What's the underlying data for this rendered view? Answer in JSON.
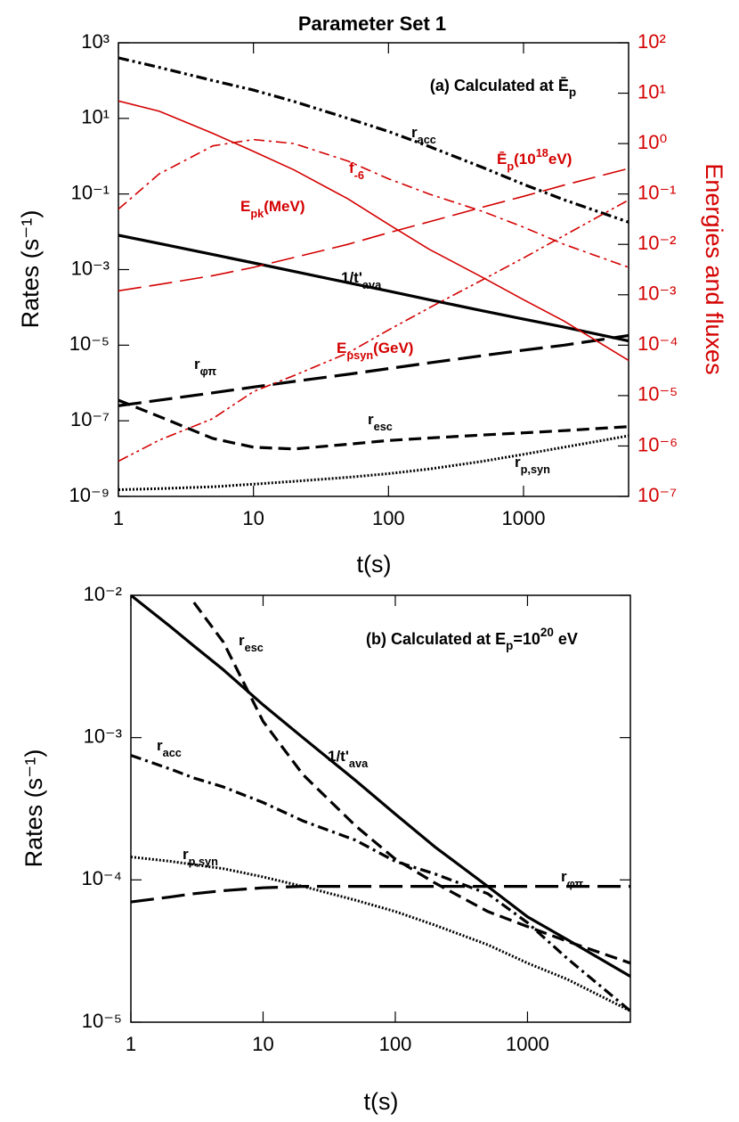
{
  "title": "Parameter Set 1",
  "chart_data": [
    {
      "type": "line",
      "title": [
        {
          "text": "(a) Calculated at "
        },
        {
          "text": "Ē"
        },
        {
          "text": "p",
          "shift": "sub"
        }
      ],
      "xlabel": "t(s)",
      "ylabel": "Rates (s⁻¹)",
      "y2label": "Energies and fluxes",
      "y2color": "#d40000",
      "xscale": "log",
      "yscale": "log",
      "y2scale": "log",
      "xlim": [
        1,
        6000
      ],
      "xticks": [
        1,
        10,
        100,
        1000
      ],
      "ylim": [
        1e-09,
        1000
      ],
      "yticks": [
        {
          "value": 1000,
          "label": "10³"
        },
        {
          "value": 10,
          "label": "10¹"
        },
        {
          "value": 0.1,
          "label": "10⁻¹"
        },
        {
          "value": 0.001,
          "label": "10⁻³"
        },
        {
          "value": 1e-05,
          "label": "10⁻⁵"
        },
        {
          "value": 1e-07,
          "label": "10⁻⁷"
        },
        {
          "value": 1e-09,
          "label": "10⁻⁹"
        }
      ],
      "y2lim": [
        1e-07,
        100
      ],
      "y2ticks": [
        {
          "value": 100,
          "label": "10²"
        },
        {
          "value": 10,
          "label": "10¹"
        },
        {
          "value": 1,
          "label": "10⁰"
        },
        {
          "value": 0.1,
          "label": "10⁻¹"
        },
        {
          "value": 0.01,
          "label": "10⁻²"
        },
        {
          "value": 0.001,
          "label": "10⁻³"
        },
        {
          "value": 0.0001,
          "label": "10⁻⁴"
        },
        {
          "value": 1e-05,
          "label": "10⁻⁵"
        },
        {
          "value": 1e-06,
          "label": "10⁻⁶"
        },
        {
          "value": 1e-07,
          "label": "10⁻⁷"
        }
      ],
      "x": [
        1,
        2,
        5,
        10,
        20,
        50,
        100,
        200,
        500,
        1000,
        2000,
        6000
      ],
      "series": [
        {
          "color": "#000000",
          "style": "dash-dot-dot",
          "values": [
            400,
            224,
            100,
            56,
            28,
            10,
            4.5,
            1.8,
            0.5,
            0.18,
            0.07,
            0.018
          ]
        },
        {
          "color": "#000000",
          "style": "solid",
          "values": [
            0.0081,
            0.0049,
            0.0025,
            0.0015,
            0.00089,
            0.00045,
            0.00027,
            0.00016,
            8.1e-05,
            4.9e-05,
            3e-05,
            1.3e-05
          ]
        },
        {
          "color": "#000000",
          "style": "long-dash",
          "values": [
            2.5e-07,
            3.5e-07,
            5.5e-07,
            7.8e-07,
            1.1e-06,
            1.7e-06,
            2.4e-06,
            3.4e-06,
            5.3e-06,
            7.4e-06,
            1e-05,
            1.8e-05
          ]
        },
        {
          "color": "#000000",
          "style": "dash",
          "values": [
            3.5e-07,
            1.3e-07,
            3.4e-08,
            2e-08,
            1.8e-08,
            2.4e-08,
            3e-08,
            3.5e-08,
            4.2e-08,
            4.8e-08,
            5.5e-08,
            7e-08
          ]
        },
        {
          "color": "#000000",
          "style": "dot",
          "values": [
            1.5e-09,
            1.6e-09,
            1.8e-09,
            2.1e-09,
            2.5e-09,
            3.2e-09,
            4e-09,
            5.3e-09,
            8.5e-09,
            1.3e-08,
            2e-08,
            4e-08
          ]
        },
        {
          "color": "#d40000",
          "style": "solid",
          "axis": "y2",
          "values": [
            7,
            4.4,
            1.6,
            0.7,
            0.3,
            0.08,
            0.025,
            0.008,
            0.0022,
            0.0008,
            0.0003,
            5e-05
          ]
        },
        {
          "color": "#d40000",
          "style": "dash-dot",
          "axis": "y2",
          "values": [
            0.05,
            0.25,
            0.9,
            1.2,
            1,
            0.45,
            0.2,
            0.1,
            0.045,
            0.022,
            0.01,
            0.0035
          ]
        },
        {
          "color": "#d40000",
          "style": "long-dash",
          "axis": "y2",
          "values": [
            0.0012,
            0.0016,
            0.0024,
            0.0035,
            0.0055,
            0.01,
            0.017,
            0.028,
            0.055,
            0.09,
            0.15,
            0.32
          ]
        },
        {
          "color": "#d40000",
          "style": "dash-dot-dot",
          "axis": "y2",
          "values": [
            5e-07,
            1.3e-06,
            3.5e-06,
            1.2e-05,
            2.5e-05,
            7e-05,
            0.0002,
            0.00055,
            0.002,
            0.0054,
            0.015,
            0.076
          ]
        }
      ],
      "annotations": [
        {
          "color": "#000000",
          "parts": [
            {
              "text": "r"
            },
            {
              "text": "acc",
              "shift": "sub"
            }
          ]
        },
        {
          "color": "#d40000",
          "parts": [
            {
              "text": "f"
            },
            {
              "text": "-6",
              "shift": "sub"
            }
          ]
        },
        {
          "color": "#d40000",
          "parts": [
            {
              "text": "Ē"
            },
            {
              "text": "p",
              "shift": "sub"
            },
            {
              "text": "(10"
            },
            {
              "text": "18",
              "shift": "super"
            },
            {
              "text": "eV)"
            }
          ]
        },
        {
          "color": "#d40000",
          "parts": [
            {
              "text": "E"
            },
            {
              "text": "pk",
              "shift": "sub"
            },
            {
              "text": "(MeV)"
            }
          ]
        },
        {
          "color": "#000000",
          "parts": [
            {
              "text": "1/t'"
            },
            {
              "text": "ava",
              "shift": "sub"
            }
          ]
        },
        {
          "color": "#d40000",
          "parts": [
            {
              "text": "E"
            },
            {
              "text": "psyn",
              "shift": "sub"
            },
            {
              "text": "(GeV)"
            }
          ]
        },
        {
          "color": "#000000",
          "parts": [
            {
              "text": "r"
            },
            {
              "text": "φπ",
              "shift": "sub"
            }
          ]
        },
        {
          "color": "#000000",
          "parts": [
            {
              "text": "r"
            },
            {
              "text": "esc",
              "shift": "sub"
            }
          ]
        },
        {
          "color": "#000000",
          "parts": [
            {
              "text": "r"
            },
            {
              "text": "p,syn",
              "shift": "sub"
            }
          ]
        }
      ]
    },
    {
      "type": "line",
      "title": [
        {
          "text": "(b) Calculated at E"
        },
        {
          "text": "p",
          "shift": "sub"
        },
        {
          "text": "=10"
        },
        {
          "text": "20",
          "shift": "super"
        },
        {
          "text": " eV"
        }
      ],
      "xlabel": "t(s)",
      "ylabel": "Rates (s⁻¹)",
      "xscale": "log",
      "yscale": "log",
      "xlim": [
        1,
        6000
      ],
      "xticks": [
        1,
        10,
        100,
        1000
      ],
      "ylim": [
        1e-05,
        0.01
      ],
      "yticks": [
        {
          "value": 0.01,
          "label": "10⁻²"
        },
        {
          "value": 0.001,
          "label": "10⁻³"
        },
        {
          "value": 0.0001,
          "label": "10⁻⁴"
        },
        {
          "value": 1e-05,
          "label": "10⁻⁵"
        }
      ],
      "x": [
        1,
        2,
        3,
        5,
        10,
        20,
        50,
        100,
        200,
        500,
        1000,
        2000,
        6000
      ],
      "series": [
        {
          "color": "#000000",
          "style": "solid",
          "values": [
            0.01,
            0.006,
            0.0044,
            0.003,
            0.0017,
            0.001,
            0.0005,
            0.00029,
            0.00017,
            9e-05,
            5.5e-05,
            3.8e-05,
            2.1e-05
          ]
        },
        {
          "color": "#000000",
          "style": "dash",
          "values": [
            null,
            null,
            0.0089,
            0.0047,
            0.0013,
            0.00055,
            0.00024,
            0.00014,
            9.5e-05,
            6e-05,
            4.7e-05,
            3.7e-05,
            2.6e-05
          ]
        },
        {
          "color": "#000000",
          "style": "dash-dot",
          "values": [
            0.00075,
            0.0006,
            0.00052,
            0.00045,
            0.00035,
            0.00026,
            0.00019,
            0.000135,
            0.00011,
            8e-05,
            5e-05,
            2.8e-05,
            1.2e-05
          ]
        },
        {
          "color": "#000000",
          "style": "long-dash",
          "values": [
            7e-05,
            7.6e-05,
            8e-05,
            8.4e-05,
            8.8e-05,
            9e-05,
            9e-05,
            9e-05,
            9e-05,
            9e-05,
            9e-05,
            9e-05,
            9e-05
          ]
        },
        {
          "color": "#000000",
          "style": "dot",
          "values": [
            0.000145,
            0.000135,
            0.000128,
            0.00012,
            0.000105,
            9e-05,
            7.2e-05,
            6e-05,
            4.8e-05,
            3.5e-05,
            2.6e-05,
            2e-05,
            1.2e-05
          ]
        }
      ],
      "annotations": [
        {
          "color": "#000000",
          "parts": [
            {
              "text": "r"
            },
            {
              "text": "esc",
              "shift": "sub"
            }
          ]
        },
        {
          "color": "#000000",
          "parts": [
            {
              "text": "r"
            },
            {
              "text": "acc",
              "shift": "sub"
            }
          ]
        },
        {
          "color": "#000000",
          "parts": [
            {
              "text": "1/t'"
            },
            {
              "text": "ava",
              "shift": "sub"
            }
          ]
        },
        {
          "color": "#000000",
          "parts": [
            {
              "text": "r"
            },
            {
              "text": "p,syn",
              "shift": "sub"
            }
          ]
        },
        {
          "color": "#000000",
          "parts": [
            {
              "text": "r"
            },
            {
              "text": "φπ",
              "shift": "sub"
            }
          ]
        }
      ]
    }
  ]
}
